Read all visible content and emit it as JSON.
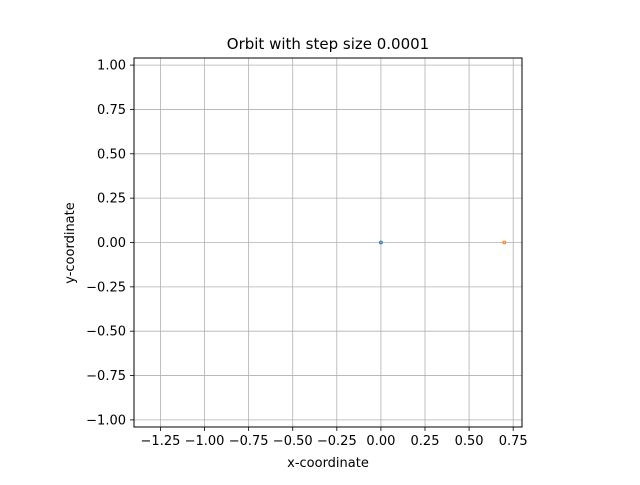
{
  "chart_data": {
    "type": "scatter",
    "title": "Orbit with step size 0.0001",
    "xlabel": "x-coordinate",
    "ylabel": "y-coordinate",
    "xlim": [
      -1.4,
      0.8
    ],
    "ylim": [
      -1.04,
      1.04
    ],
    "x_ticks": [
      -1.25,
      -1.0,
      -0.75,
      -0.5,
      -0.25,
      0.0,
      0.25,
      0.5,
      0.75
    ],
    "x_tick_labels": [
      "−1.25",
      "−1.00",
      "−0.75",
      "−0.50",
      "−0.25",
      "0.00",
      "0.25",
      "0.50",
      "0.75"
    ],
    "y_ticks": [
      1.0,
      0.75,
      0.5,
      0.25,
      0.0,
      -0.25,
      -0.5,
      -0.75,
      -1.0
    ],
    "y_tick_labels": [
      "1.00",
      "0.75",
      "0.50",
      "0.25",
      "0.00",
      "−0.25",
      "−0.50",
      "−0.75",
      "−1.00"
    ],
    "grid": true,
    "series": [
      {
        "x": [
          0.0
        ],
        "y": [
          0.0
        ],
        "color": "#1f77b4"
      },
      {
        "x": [
          0.7
        ],
        "y": [
          0.0
        ],
        "color": "#ff7f0e"
      }
    ]
  }
}
